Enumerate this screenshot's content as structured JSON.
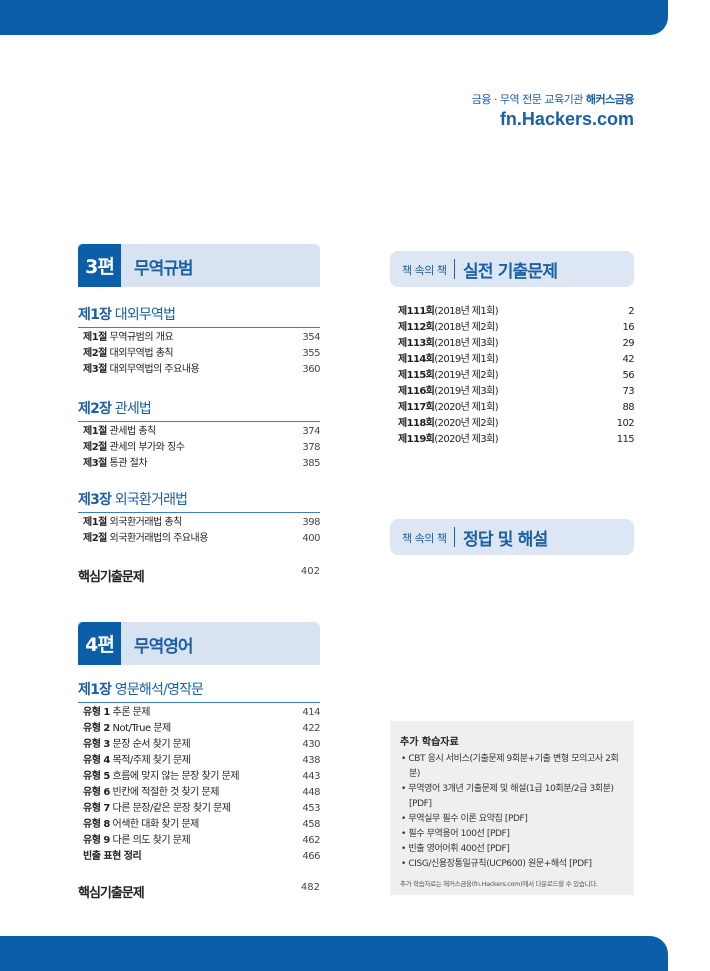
{
  "header": {
    "tagline": "금융 · 무역 전문 교육기관",
    "brand": "해커스금융",
    "site": "fn.Hackers.com"
  },
  "left": [
    {
      "part_num": "3편",
      "part_title": "무역규범",
      "chapters": [
        {
          "num": "제1장",
          "title": "대외무역법",
          "items": [
            {
              "num": "제1절",
              "title": "무역규범의 개요",
              "page": "354"
            },
            {
              "num": "제2절",
              "title": "대외무역법 총칙",
              "page": "355"
            },
            {
              "num": "제3절",
              "title": "대외무역법의 주요내용",
              "page": "360"
            }
          ]
        },
        {
          "num": "제2장",
          "title": "관세법",
          "items": [
            {
              "num": "제1절",
              "title": "관세법 총칙",
              "page": "374"
            },
            {
              "num": "제2절",
              "title": "관세의 부가와 징수",
              "page": "378"
            },
            {
              "num": "제3절",
              "title": "통관 절차",
              "page": "385"
            }
          ]
        },
        {
          "num": "제3장",
          "title": "외국환거래법",
          "items": [
            {
              "num": "제1절",
              "title": "외국환거래법 총칙",
              "page": "398"
            },
            {
              "num": "제2절",
              "title": "외국환거래법의 주요내용",
              "page": "400"
            }
          ]
        }
      ],
      "core": {
        "title": "핵심기출문제",
        "page": "402"
      }
    },
    {
      "part_num": "4편",
      "part_title": "무역영어",
      "chapters": [
        {
          "num": "제1장",
          "title": "영문해석/영작문",
          "items": [
            {
              "num": "유형 1",
              "title": "추론 문제",
              "page": "414"
            },
            {
              "num": "유형 2",
              "title": "Not/True 문제",
              "page": "422"
            },
            {
              "num": "유형 3",
              "title": "문장 순서 찾기 문제",
              "page": "430"
            },
            {
              "num": "유형 4",
              "title": "목적/주제 찾기 문제",
              "page": "438"
            },
            {
              "num": "유형 5",
              "title": "흐름에 맞지 않는 문장 찾기 문제",
              "page": "443"
            },
            {
              "num": "유형 6",
              "title": "빈칸에 적절한 것 찾기 문제",
              "page": "448"
            },
            {
              "num": "유형 7",
              "title": "다른 문장/같은 문장 찾기 문제",
              "page": "453"
            },
            {
              "num": "유형 8",
              "title": "어색한 대화 찾기 문제",
              "page": "458"
            },
            {
              "num": "유형 9",
              "title": "다른 의도 찾기 문제",
              "page": "462"
            },
            {
              "num": "빈출 표현 정리",
              "title": "",
              "page": "466"
            }
          ]
        }
      ],
      "core": {
        "title": "핵심기출문제",
        "page": "482"
      }
    }
  ],
  "right": {
    "book1": {
      "small": "책 속의 책",
      "title": "실전 기출문제",
      "items": [
        {
          "num": "제111회",
          "title": "(2018년 제1회)",
          "page": "2"
        },
        {
          "num": "제112회",
          "title": "(2018년 제2회)",
          "page": "16"
        },
        {
          "num": "제113회",
          "title": "(2018년 제3회)",
          "page": "29"
        },
        {
          "num": "제114회",
          "title": "(2019년 제1회)",
          "page": "42"
        },
        {
          "num": "제115회",
          "title": "(2019년 제2회)",
          "page": "56"
        },
        {
          "num": "제116회",
          "title": "(2019년 제3회)",
          "page": "73"
        },
        {
          "num": "제117회",
          "title": "(2020년 제1회)",
          "page": "88"
        },
        {
          "num": "제118회",
          "title": "(2020년 제2회)",
          "page": "102"
        },
        {
          "num": "제119회",
          "title": "(2020년 제3회)",
          "page": "115"
        }
      ]
    },
    "book2": {
      "small": "책 속의 책",
      "title": "정답 및 해설"
    },
    "extra": {
      "title": "추가 학습자료",
      "items": [
        "CBT 응시 서비스(기출문제 9회분+기출 변형 모의고사 2회분)",
        "무역영어 3개년 기출문제 및 해설(1급 10회분/2급 3회분) [PDF]",
        "무역실무 필수 이론 요약집 [PDF]",
        "필수 무역용어 100선 [PDF]",
        "빈출 영어어휘 400선 [PDF]",
        "CISG/신용장통일규칙(UCP600) 원문+해석 [PDF]"
      ],
      "note": "추가 학습자료는 해커스금융(fn.Hackers.com)에서 다운로드할 수 있습니다."
    }
  },
  "colors": {
    "brand_blue": "#0b5ea8",
    "banner_light": "#d8e3f2",
    "box_gray": "#eeeff1"
  }
}
